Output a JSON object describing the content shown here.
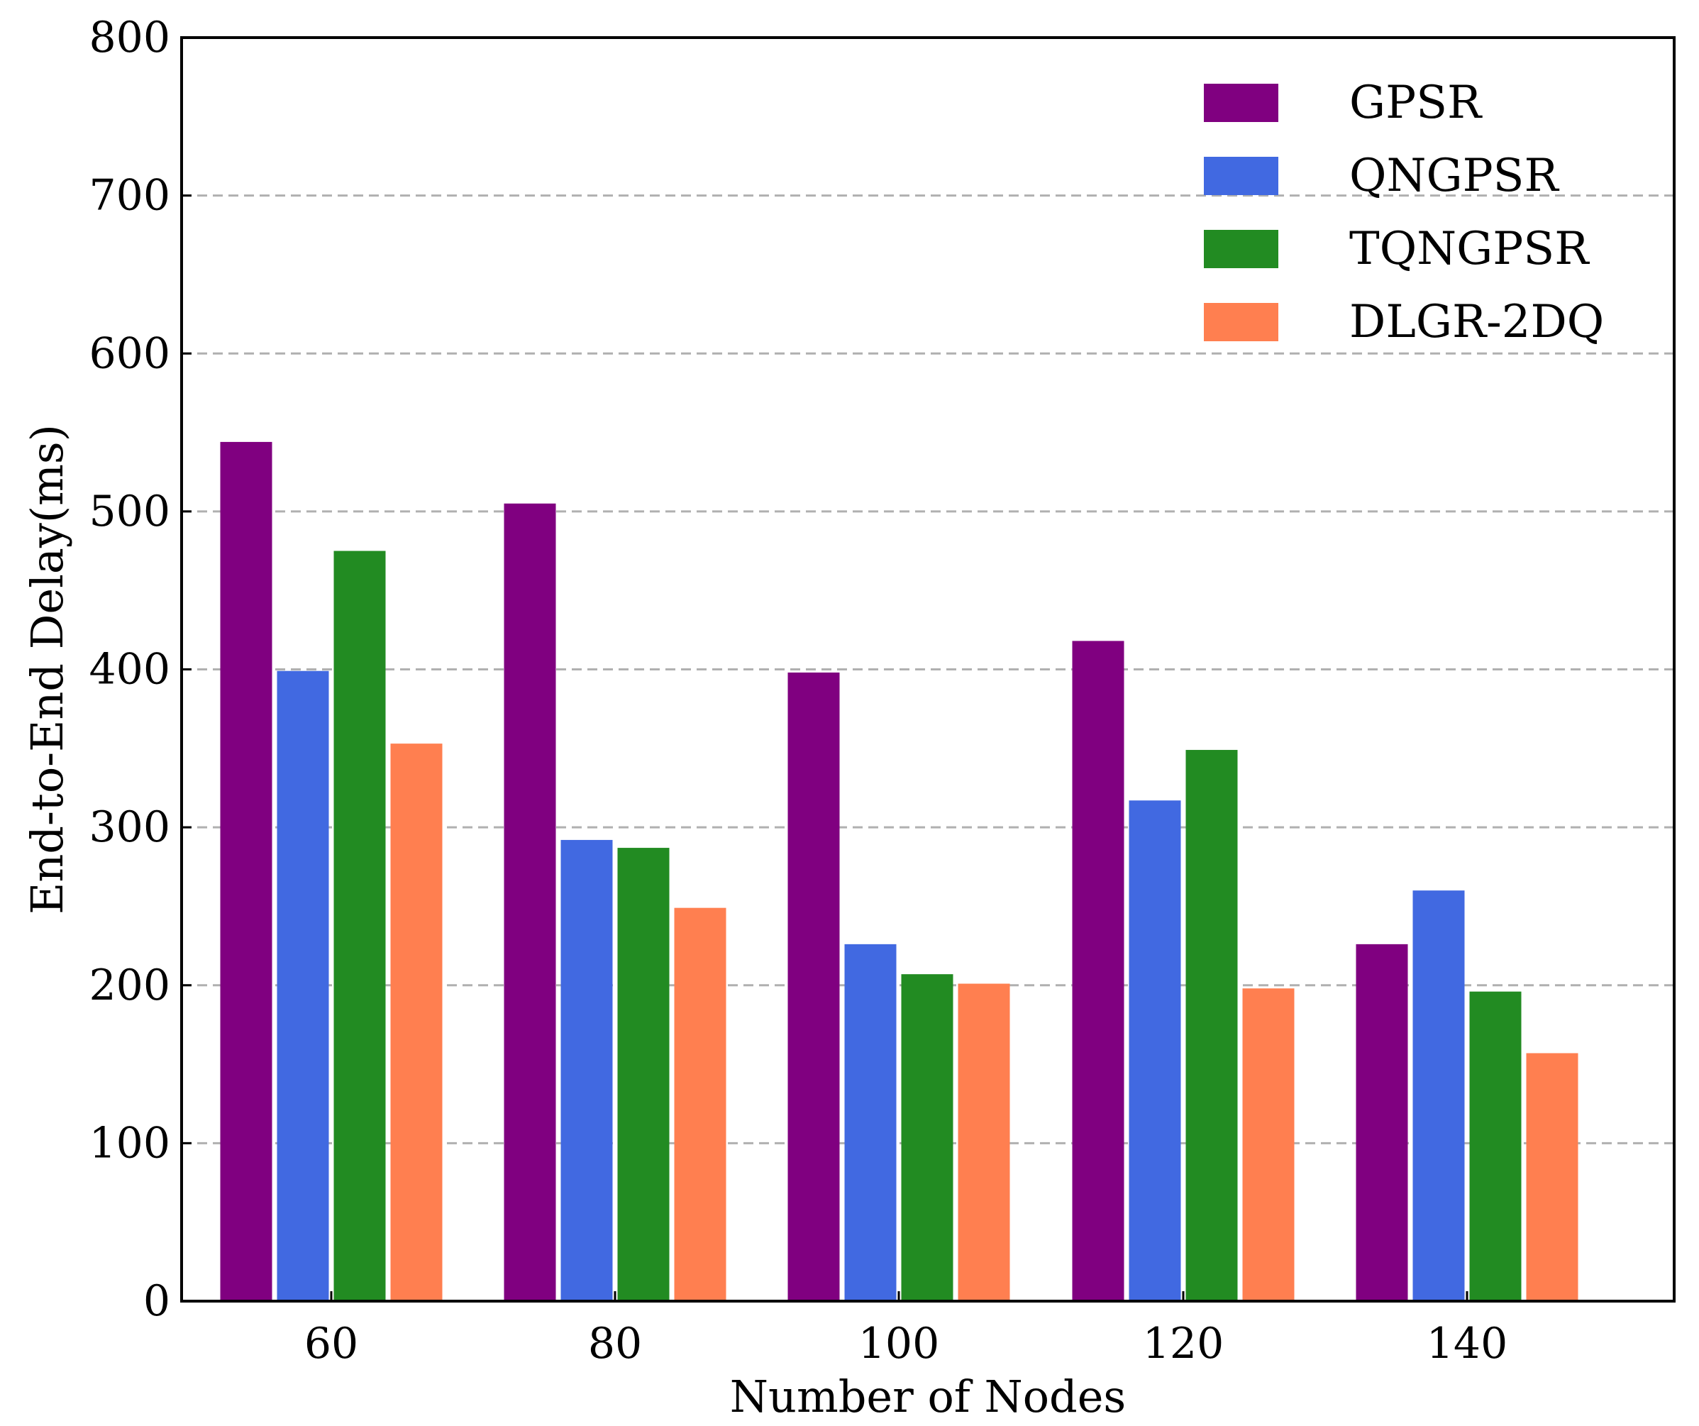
{
  "chart_data": {
    "type": "bar",
    "title": "",
    "xlabel": "Number of Nodes",
    "ylabel": "End-to-End Delay(ms)",
    "categories": [
      "60",
      "80",
      "100",
      "120",
      "140"
    ],
    "ylim": [
      0,
      800
    ],
    "yticks": [
      0,
      100,
      200,
      300,
      400,
      500,
      600,
      700,
      800
    ],
    "grid": "horizontal dashed",
    "legend_position": "top-right",
    "series": [
      {
        "name": "GPSR",
        "color": "#800080",
        "values": [
          544,
          505,
          398,
          418,
          226
        ]
      },
      {
        "name": "QNGPSR",
        "color": "#4169E1",
        "values": [
          399,
          292,
          226,
          317,
          260
        ]
      },
      {
        "name": "TQNGPSR",
        "color": "#228B22",
        "values": [
          475,
          287,
          207,
          349,
          196
        ]
      },
      {
        "name": "DLGR-2DQ",
        "color": "#FF7F50",
        "values": [
          353,
          249,
          201,
          198,
          157
        ]
      }
    ]
  }
}
